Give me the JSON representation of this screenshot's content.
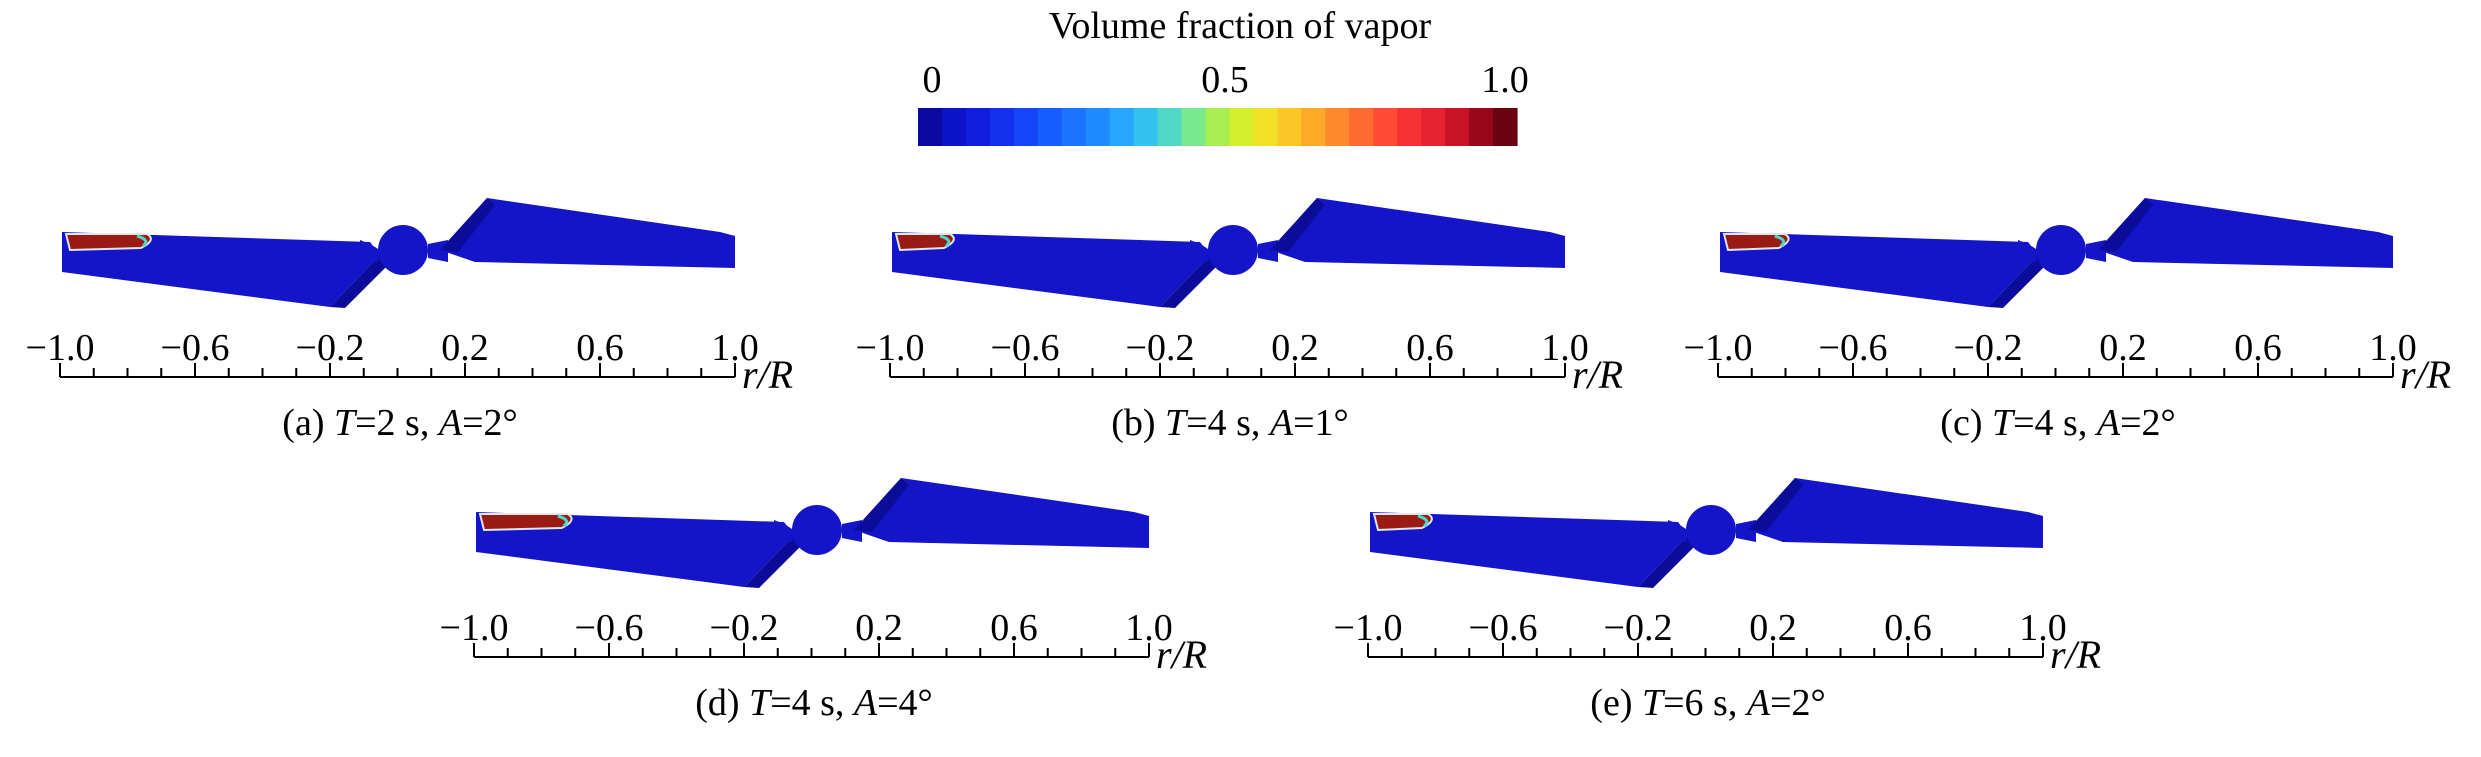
{
  "colorbar": {
    "title": "Volume fraction of vapor",
    "tick_labels": [
      "0",
      "0.5",
      "1.0"
    ],
    "tick_values": [
      0,
      0.5,
      1.0
    ],
    "colors": [
      "#0a0aa0",
      "#0d14c8",
      "#0f1edc",
      "#1230ee",
      "#1446f8",
      "#175cff",
      "#1a74ff",
      "#1e8cff",
      "#25a6ff",
      "#33c2f0",
      "#4fd8c8",
      "#7ae88e",
      "#a8ee52",
      "#d2ee2c",
      "#f0e028",
      "#fcc626",
      "#ffa82a",
      "#ff8a2e",
      "#ff6a30",
      "#ff4c34",
      "#f43234",
      "#e42230",
      "#c81226",
      "#98081a",
      "#6a040e"
    ]
  },
  "axis": {
    "tick_labels": [
      "−1.0",
      "−0.6",
      "−0.2",
      "0.2",
      "0.6",
      "1.0"
    ],
    "tick_values": [
      -1.0,
      -0.6,
      -0.2,
      0.2,
      0.6,
      1.0
    ],
    "minor_step": 0.1,
    "unit_label": "r/R"
  },
  "blade_color": "#1414c8",
  "vapor_color": "#9a1a14",
  "panels": [
    {
      "tag": "(a)",
      "T": "2",
      "A": "2°",
      "vapor_extent": 0.12
    },
    {
      "tag": "(b)",
      "T": "4",
      "A": "1°",
      "vapor_extent": 0.08
    },
    {
      "tag": "(c)",
      "T": "4",
      "A": "2°",
      "vapor_extent": 0.09
    },
    {
      "tag": "(d)",
      "T": "4",
      "A": "4°",
      "vapor_extent": 0.13
    },
    {
      "tag": "(e)",
      "T": "6",
      "A": "2°",
      "vapor_extent": 0.08
    }
  ]
}
